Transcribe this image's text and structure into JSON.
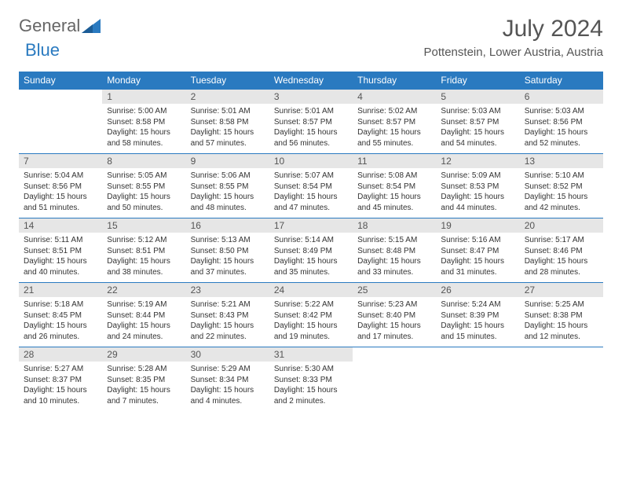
{
  "logo": {
    "text1": "General",
    "text2": "Blue"
  },
  "title": "July 2024",
  "location": "Pottenstein, Lower Austria, Austria",
  "days": [
    "Sunday",
    "Monday",
    "Tuesday",
    "Wednesday",
    "Thursday",
    "Friday",
    "Saturday"
  ],
  "colors": {
    "header_bg": "#2a7ac0",
    "header_text": "#ffffff",
    "date_bg": "#e6e6e6",
    "border": "#2a7ac0",
    "text": "#333333"
  },
  "weeks": [
    [
      {
        "num": "",
        "sunrise": "",
        "sunset": "",
        "daylight": ""
      },
      {
        "num": "1",
        "sunrise": "Sunrise: 5:00 AM",
        "sunset": "Sunset: 8:58 PM",
        "daylight": "Daylight: 15 hours and 58 minutes."
      },
      {
        "num": "2",
        "sunrise": "Sunrise: 5:01 AM",
        "sunset": "Sunset: 8:58 PM",
        "daylight": "Daylight: 15 hours and 57 minutes."
      },
      {
        "num": "3",
        "sunrise": "Sunrise: 5:01 AM",
        "sunset": "Sunset: 8:57 PM",
        "daylight": "Daylight: 15 hours and 56 minutes."
      },
      {
        "num": "4",
        "sunrise": "Sunrise: 5:02 AM",
        "sunset": "Sunset: 8:57 PM",
        "daylight": "Daylight: 15 hours and 55 minutes."
      },
      {
        "num": "5",
        "sunrise": "Sunrise: 5:03 AM",
        "sunset": "Sunset: 8:57 PM",
        "daylight": "Daylight: 15 hours and 54 minutes."
      },
      {
        "num": "6",
        "sunrise": "Sunrise: 5:03 AM",
        "sunset": "Sunset: 8:56 PM",
        "daylight": "Daylight: 15 hours and 52 minutes."
      }
    ],
    [
      {
        "num": "7",
        "sunrise": "Sunrise: 5:04 AM",
        "sunset": "Sunset: 8:56 PM",
        "daylight": "Daylight: 15 hours and 51 minutes."
      },
      {
        "num": "8",
        "sunrise": "Sunrise: 5:05 AM",
        "sunset": "Sunset: 8:55 PM",
        "daylight": "Daylight: 15 hours and 50 minutes."
      },
      {
        "num": "9",
        "sunrise": "Sunrise: 5:06 AM",
        "sunset": "Sunset: 8:55 PM",
        "daylight": "Daylight: 15 hours and 48 minutes."
      },
      {
        "num": "10",
        "sunrise": "Sunrise: 5:07 AM",
        "sunset": "Sunset: 8:54 PM",
        "daylight": "Daylight: 15 hours and 47 minutes."
      },
      {
        "num": "11",
        "sunrise": "Sunrise: 5:08 AM",
        "sunset": "Sunset: 8:54 PM",
        "daylight": "Daylight: 15 hours and 45 minutes."
      },
      {
        "num": "12",
        "sunrise": "Sunrise: 5:09 AM",
        "sunset": "Sunset: 8:53 PM",
        "daylight": "Daylight: 15 hours and 44 minutes."
      },
      {
        "num": "13",
        "sunrise": "Sunrise: 5:10 AM",
        "sunset": "Sunset: 8:52 PM",
        "daylight": "Daylight: 15 hours and 42 minutes."
      }
    ],
    [
      {
        "num": "14",
        "sunrise": "Sunrise: 5:11 AM",
        "sunset": "Sunset: 8:51 PM",
        "daylight": "Daylight: 15 hours and 40 minutes."
      },
      {
        "num": "15",
        "sunrise": "Sunrise: 5:12 AM",
        "sunset": "Sunset: 8:51 PM",
        "daylight": "Daylight: 15 hours and 38 minutes."
      },
      {
        "num": "16",
        "sunrise": "Sunrise: 5:13 AM",
        "sunset": "Sunset: 8:50 PM",
        "daylight": "Daylight: 15 hours and 37 minutes."
      },
      {
        "num": "17",
        "sunrise": "Sunrise: 5:14 AM",
        "sunset": "Sunset: 8:49 PM",
        "daylight": "Daylight: 15 hours and 35 minutes."
      },
      {
        "num": "18",
        "sunrise": "Sunrise: 5:15 AM",
        "sunset": "Sunset: 8:48 PM",
        "daylight": "Daylight: 15 hours and 33 minutes."
      },
      {
        "num": "19",
        "sunrise": "Sunrise: 5:16 AM",
        "sunset": "Sunset: 8:47 PM",
        "daylight": "Daylight: 15 hours and 31 minutes."
      },
      {
        "num": "20",
        "sunrise": "Sunrise: 5:17 AM",
        "sunset": "Sunset: 8:46 PM",
        "daylight": "Daylight: 15 hours and 28 minutes."
      }
    ],
    [
      {
        "num": "21",
        "sunrise": "Sunrise: 5:18 AM",
        "sunset": "Sunset: 8:45 PM",
        "daylight": "Daylight: 15 hours and 26 minutes."
      },
      {
        "num": "22",
        "sunrise": "Sunrise: 5:19 AM",
        "sunset": "Sunset: 8:44 PM",
        "daylight": "Daylight: 15 hours and 24 minutes."
      },
      {
        "num": "23",
        "sunrise": "Sunrise: 5:21 AM",
        "sunset": "Sunset: 8:43 PM",
        "daylight": "Daylight: 15 hours and 22 minutes."
      },
      {
        "num": "24",
        "sunrise": "Sunrise: 5:22 AM",
        "sunset": "Sunset: 8:42 PM",
        "daylight": "Daylight: 15 hours and 19 minutes."
      },
      {
        "num": "25",
        "sunrise": "Sunrise: 5:23 AM",
        "sunset": "Sunset: 8:40 PM",
        "daylight": "Daylight: 15 hours and 17 minutes."
      },
      {
        "num": "26",
        "sunrise": "Sunrise: 5:24 AM",
        "sunset": "Sunset: 8:39 PM",
        "daylight": "Daylight: 15 hours and 15 minutes."
      },
      {
        "num": "27",
        "sunrise": "Sunrise: 5:25 AM",
        "sunset": "Sunset: 8:38 PM",
        "daylight": "Daylight: 15 hours and 12 minutes."
      }
    ],
    [
      {
        "num": "28",
        "sunrise": "Sunrise: 5:27 AM",
        "sunset": "Sunset: 8:37 PM",
        "daylight": "Daylight: 15 hours and 10 minutes."
      },
      {
        "num": "29",
        "sunrise": "Sunrise: 5:28 AM",
        "sunset": "Sunset: 8:35 PM",
        "daylight": "Daylight: 15 hours and 7 minutes."
      },
      {
        "num": "30",
        "sunrise": "Sunrise: 5:29 AM",
        "sunset": "Sunset: 8:34 PM",
        "daylight": "Daylight: 15 hours and 4 minutes."
      },
      {
        "num": "31",
        "sunrise": "Sunrise: 5:30 AM",
        "sunset": "Sunset: 8:33 PM",
        "daylight": "Daylight: 15 hours and 2 minutes."
      },
      {
        "num": "",
        "sunrise": "",
        "sunset": "",
        "daylight": ""
      },
      {
        "num": "",
        "sunrise": "",
        "sunset": "",
        "daylight": ""
      },
      {
        "num": "",
        "sunrise": "",
        "sunset": "",
        "daylight": ""
      }
    ]
  ]
}
